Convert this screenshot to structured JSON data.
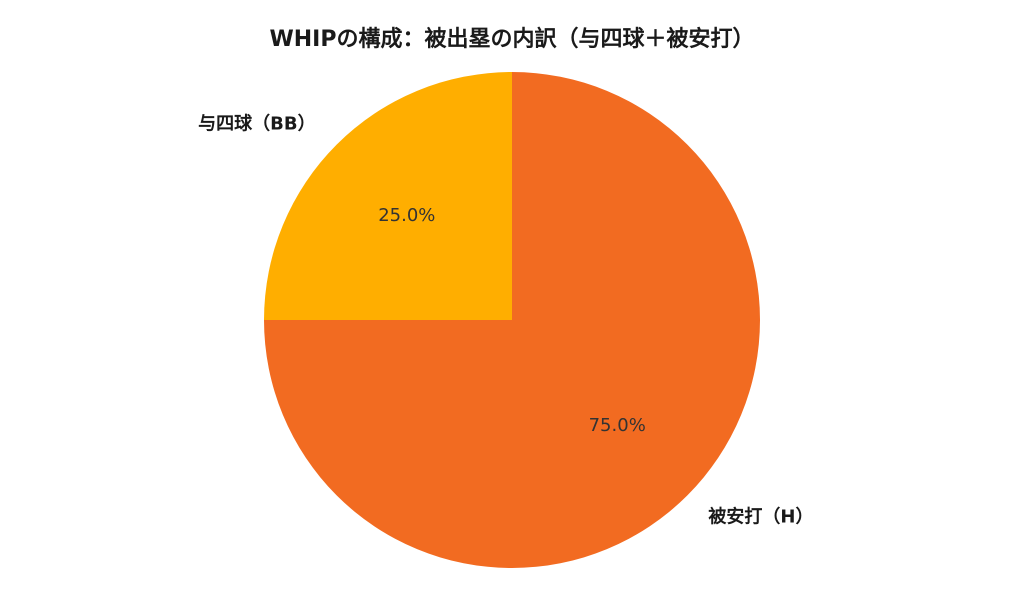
{
  "chart_data": {
    "type": "pie",
    "title": "WHIPの構成：被出塁の内訳（与四球＋被安打）",
    "categories": [
      "被安打（H）",
      "与四球（BB）"
    ],
    "values": [
      75.0,
      25.0
    ],
    "value_labels": [
      "75.0%",
      "25.0%"
    ],
    "colors": [
      "#f26b21",
      "#ffae00"
    ],
    "start_angle_deg": 90,
    "direction": "clockwise",
    "legend": "none"
  }
}
